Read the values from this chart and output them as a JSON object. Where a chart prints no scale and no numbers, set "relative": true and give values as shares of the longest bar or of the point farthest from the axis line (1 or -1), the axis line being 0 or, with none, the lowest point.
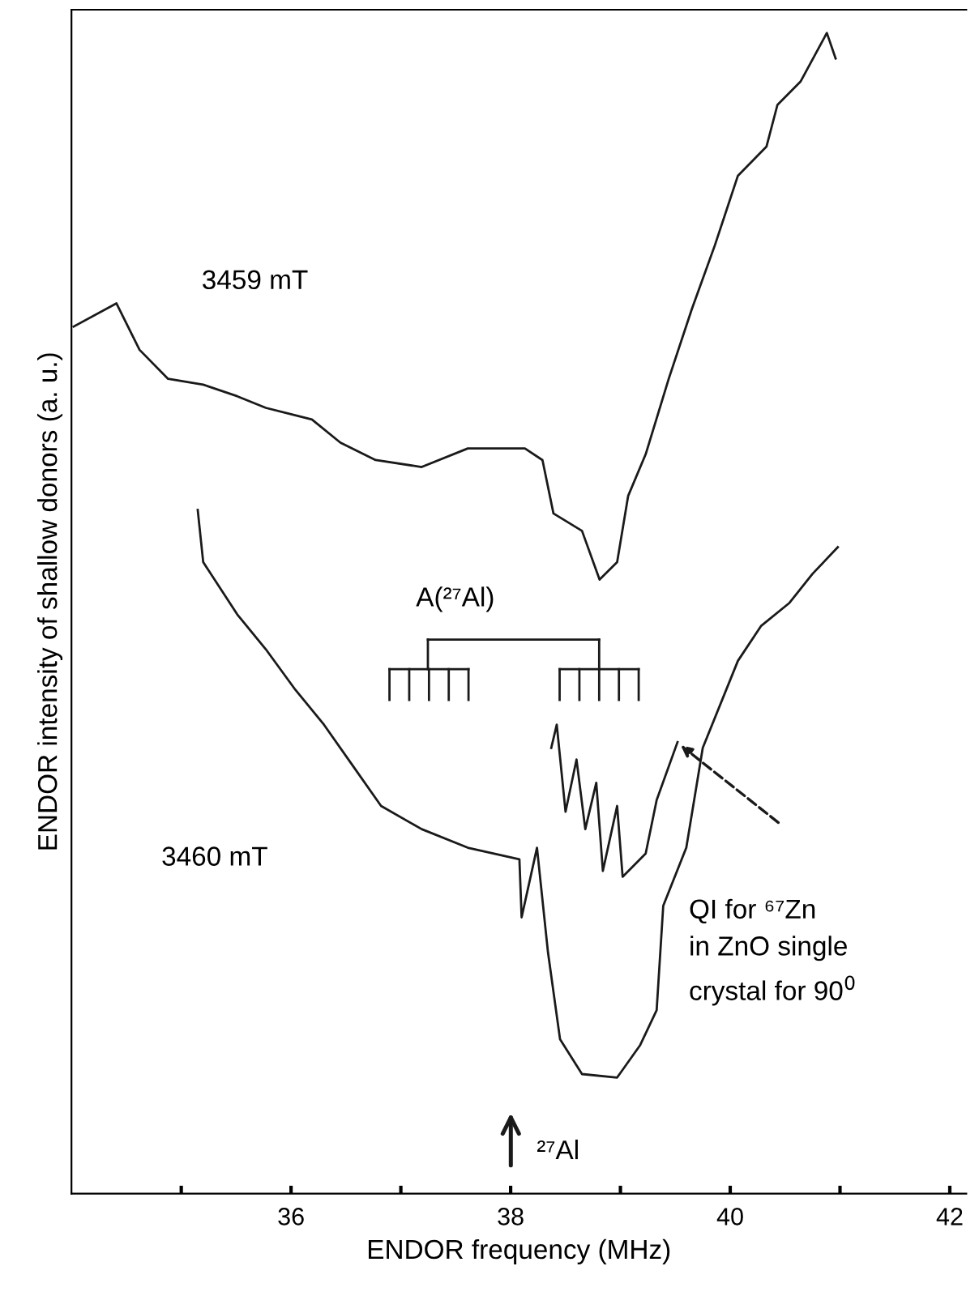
{
  "chart_data": {
    "type": "line",
    "relative": true,
    "xlabel": "ENDOR frequency (MHz)",
    "ylabel": "ENDOR intensity of shallow donors (a. u.)",
    "xlim": [
      34,
      42.15
    ],
    "xticks": [
      {
        "value": 35,
        "label": null
      },
      36,
      {
        "value": 37,
        "label": null
      },
      38,
      {
        "value": 39,
        "label": null
      },
      40,
      {
        "value": 41,
        "label": null
      },
      42
    ],
    "tick_labels": "x",
    "grid": false,
    "legend": false,
    "marker": "none",
    "line_style": "solid",
    "series": [
      {
        "color": "#1a1a1a",
        "x": [
          34.02,
          34.41,
          34.62,
          34.88,
          35.2,
          35.51,
          35.77,
          36.19,
          36.45,
          36.77,
          37.19,
          37.61,
          38.13,
          38.29,
          38.39,
          38.65,
          38.81,
          38.97,
          39.07,
          39.23,
          39.44,
          39.65,
          39.86,
          40.07,
          40.33,
          40.43,
          40.64,
          40.88,
          40.96
        ],
        "values": [
          0.747,
          0.767,
          0.727,
          0.702,
          0.697,
          0.687,
          0.677,
          0.667,
          0.647,
          0.632,
          0.626,
          0.642,
          0.642,
          0.632,
          0.586,
          0.571,
          0.529,
          0.544,
          0.601,
          0.637,
          0.702,
          0.762,
          0.817,
          0.877,
          0.902,
          0.938,
          0.958,
          1.0,
          0.978
        ]
      },
      {
        "color": "#1a1a1a",
        "x": [
          35.15,
          35.2,
          35.51,
          35.77,
          36.04,
          36.3,
          36.56,
          36.82,
          37.19,
          37.61,
          38.08,
          38.1,
          38.24,
          38.34,
          38.45,
          38.65,
          38.97,
          39.18,
          39.33,
          39.39,
          39.6,
          39.75,
          40.07,
          40.28,
          40.54,
          40.75,
          40.98
        ],
        "values": [
          0.589,
          0.544,
          0.499,
          0.469,
          0.434,
          0.404,
          0.369,
          0.334,
          0.314,
          0.298,
          0.288,
          0.238,
          0.298,
          0.208,
          0.133,
          0.103,
          0.1,
          0.128,
          0.158,
          0.248,
          0.298,
          0.384,
          0.459,
          0.489,
          0.509,
          0.534,
          0.557
        ]
      },
      {
        "color": "#1a1a1a",
        "x": [
          38.37,
          38.42,
          38.5,
          38.6,
          38.68,
          38.78,
          38.84,
          38.97,
          39.02,
          39.23,
          39.33,
          39.52
        ],
        "values": [
          0.384,
          0.404,
          0.329,
          0.374,
          0.314,
          0.354,
          0.278,
          0.334,
          0.273,
          0.293,
          0.339,
          0.389
        ]
      }
    ],
    "annotations": [
      "3459 mT",
      "3460 mT",
      "A(²⁷Al)",
      "QI for ⁶⁷Zn\nin ZnO single\ncrystal for 90$^{0}$",
      "²⁷Al"
    ]
  }
}
